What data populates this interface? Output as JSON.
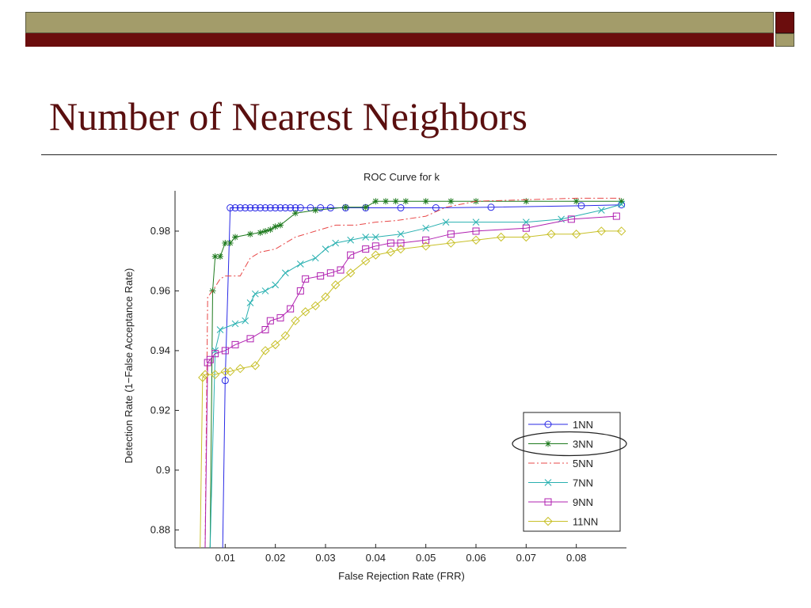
{
  "slide": {
    "title": "Number of Nearest Neighbors",
    "colors": {
      "olive": "#a39c6a",
      "maroon": "#6b0d0d",
      "title": "#5a0f0f"
    }
  },
  "chart_data": {
    "type": "line",
    "title": "ROC Curve for k",
    "xlabel": "False Rejection Rate (FRR)",
    "ylabel": "Detection Rate (1−False Acceptance Rate)",
    "xlim": [
      0.0,
      0.09
    ],
    "ylim": [
      0.874,
      0.9935
    ],
    "xticks": [
      "0.01",
      "0.02",
      "0.03",
      "0.04",
      "0.05",
      "0.06",
      "0.07",
      "0.08"
    ],
    "yticks": [
      "0.88",
      "0.9",
      "0.92",
      "0.94",
      "0.96",
      "0.98"
    ],
    "grid": false,
    "legend_position": "bottom-right",
    "series": [
      {
        "name": "1NN",
        "color": "#2a2ae6",
        "marker": "circle",
        "x": [
          0.0095,
          0.01,
          0.011,
          0.012,
          0.013,
          0.014,
          0.015,
          0.016,
          0.017,
          0.018,
          0.019,
          0.02,
          0.021,
          0.022,
          0.023,
          0.024,
          0.025,
          0.027,
          0.029,
          0.031,
          0.034,
          0.038,
          0.045,
          0.052,
          0.063,
          0.081,
          0.089
        ],
        "y": [
          0.874,
          0.93,
          0.9878,
          0.9878,
          0.9878,
          0.9878,
          0.9878,
          0.9878,
          0.9878,
          0.9878,
          0.9878,
          0.9878,
          0.9878,
          0.9878,
          0.9878,
          0.9878,
          0.9878,
          0.9878,
          0.9878,
          0.9878,
          0.9878,
          0.9878,
          0.9878,
          0.9878,
          0.988,
          0.9885,
          0.9888
        ]
      },
      {
        "name": "3NN",
        "color": "#1e7a1e",
        "marker": "asterisk",
        "x": [
          0.007,
          0.0075,
          0.008,
          0.009,
          0.01,
          0.011,
          0.012,
          0.015,
          0.017,
          0.018,
          0.019,
          0.02,
          0.021,
          0.024,
          0.028,
          0.034,
          0.038,
          0.04,
          0.042,
          0.044,
          0.046,
          0.05,
          0.055,
          0.06,
          0.07,
          0.08,
          0.089
        ],
        "y": [
          0.874,
          0.96,
          0.9715,
          0.9715,
          0.976,
          0.976,
          0.978,
          0.979,
          0.9795,
          0.98,
          0.9805,
          0.9815,
          0.982,
          0.986,
          0.987,
          0.988,
          0.988,
          0.99,
          0.99,
          0.99,
          0.99,
          0.99,
          0.99,
          0.99,
          0.99,
          0.99,
          0.99
        ]
      },
      {
        "name": "5NN",
        "color": "#e84848",
        "marker": "none",
        "x": [
          0.006,
          0.0065,
          0.0075,
          0.009,
          0.01,
          0.013,
          0.015,
          0.017,
          0.02,
          0.022,
          0.024,
          0.028,
          0.032,
          0.036,
          0.04,
          0.044,
          0.05,
          0.054,
          0.06,
          0.07,
          0.08,
          0.089
        ],
        "y": [
          0.874,
          0.958,
          0.96,
          0.964,
          0.965,
          0.965,
          0.971,
          0.973,
          0.974,
          0.976,
          0.978,
          0.98,
          0.982,
          0.982,
          0.983,
          0.9835,
          0.985,
          0.988,
          0.99,
          0.9905,
          0.991,
          0.991
        ]
      },
      {
        "name": "7NN",
        "color": "#28b0b0",
        "marker": "x",
        "x": [
          0.007,
          0.008,
          0.009,
          0.012,
          0.014,
          0.015,
          0.016,
          0.018,
          0.02,
          0.022,
          0.025,
          0.028,
          0.03,
          0.032,
          0.035,
          0.038,
          0.04,
          0.045,
          0.05,
          0.054,
          0.06,
          0.07,
          0.077,
          0.085,
          0.089
        ],
        "y": [
          0.874,
          0.94,
          0.947,
          0.949,
          0.95,
          0.956,
          0.959,
          0.96,
          0.962,
          0.966,
          0.969,
          0.971,
          0.974,
          0.976,
          0.977,
          0.978,
          0.978,
          0.979,
          0.981,
          0.983,
          0.983,
          0.983,
          0.984,
          0.987,
          0.989
        ]
      },
      {
        "name": "9NN",
        "color": "#b020b0",
        "marker": "square",
        "x": [
          0.006,
          0.0065,
          0.007,
          0.008,
          0.01,
          0.012,
          0.015,
          0.018,
          0.019,
          0.021,
          0.023,
          0.025,
          0.026,
          0.029,
          0.031,
          0.033,
          0.035,
          0.038,
          0.04,
          0.043,
          0.045,
          0.05,
          0.055,
          0.06,
          0.07,
          0.079,
          0.088
        ],
        "y": [
          0.874,
          0.936,
          0.937,
          0.939,
          0.94,
          0.942,
          0.944,
          0.947,
          0.95,
          0.951,
          0.954,
          0.96,
          0.964,
          0.965,
          0.966,
          0.967,
          0.972,
          0.974,
          0.975,
          0.976,
          0.976,
          0.977,
          0.979,
          0.98,
          0.981,
          0.984,
          0.985
        ]
      },
      {
        "name": "11NN",
        "color": "#c8c028",
        "marker": "diamond",
        "x": [
          0.005,
          0.0055,
          0.006,
          0.008,
          0.01,
          0.011,
          0.013,
          0.016,
          0.018,
          0.02,
          0.022,
          0.024,
          0.026,
          0.028,
          0.03,
          0.032,
          0.035,
          0.038,
          0.04,
          0.043,
          0.045,
          0.05,
          0.055,
          0.06,
          0.065,
          0.07,
          0.075,
          0.08,
          0.085,
          0.089
        ],
        "y": [
          0.874,
          0.931,
          0.932,
          0.932,
          0.933,
          0.933,
          0.934,
          0.935,
          0.94,
          0.942,
          0.945,
          0.95,
          0.953,
          0.955,
          0.958,
          0.962,
          0.966,
          0.97,
          0.972,
          0.973,
          0.974,
          0.975,
          0.976,
          0.977,
          0.978,
          0.978,
          0.979,
          0.979,
          0.98,
          0.98
        ]
      }
    ]
  }
}
